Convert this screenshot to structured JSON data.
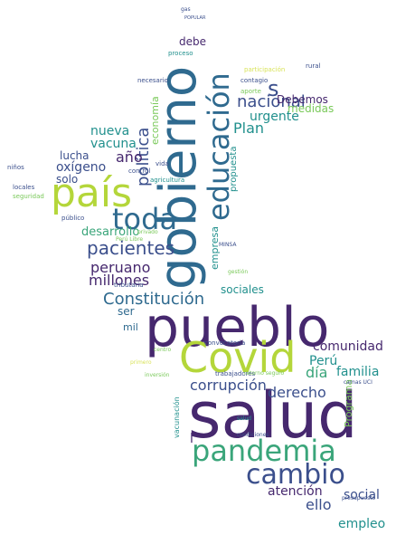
{
  "palette": {
    "dark_purple": "#46286e",
    "navy": "#3b4f8c",
    "blue": "#2f6a8f",
    "teal": "#21908d",
    "green": "#3aa57a",
    "lime": "#b4d63a",
    "light_green": "#7ac95a",
    "yellow_green": "#d9e35a"
  },
  "words": [
    {
      "text": "salud",
      "color": "#46286e"
    },
    {
      "text": "pueblo",
      "color": "#46286e"
    },
    {
      "text": "gobierno",
      "color": "#2f6a8f"
    },
    {
      "text": "Covid",
      "color": "#b4d63a"
    },
    {
      "text": "país",
      "color": "#b4d63a"
    },
    {
      "text": "educación",
      "color": "#2f6a8f"
    },
    {
      "text": "pandemia",
      "color": "#3aa57a"
    },
    {
      "text": "cambio",
      "color": "#3b4f8c"
    },
    {
      "text": "toda",
      "color": "#2f6a8f"
    },
    {
      "text": "Constitución",
      "color": "#2f6a8f"
    },
    {
      "text": "pacientes",
      "color": "#3b4f8c"
    },
    {
      "text": "política",
      "color": "#3b4f8c"
    },
    {
      "text": "nacional",
      "color": "#3b4f8c"
    },
    {
      "text": "oxígeno",
      "color": "#3b4f8c"
    },
    {
      "text": "peruano",
      "color": "#46286e"
    },
    {
      "text": "millones",
      "color": "#46286e"
    },
    {
      "text": "corrupción",
      "color": "#3b4f8c"
    },
    {
      "text": "derecho",
      "color": "#3b4f8c"
    },
    {
      "text": "Perú",
      "color": "#21908d"
    },
    {
      "text": "día",
      "color": "#3aa57a"
    },
    {
      "text": "familia",
      "color": "#21908d"
    },
    {
      "text": "comunidad",
      "color": "#46286e"
    },
    {
      "text": "atención",
      "color": "#46286e"
    },
    {
      "text": "social",
      "color": "#3b4f8c"
    },
    {
      "text": "ello",
      "color": "#3b4f8c"
    },
    {
      "text": "empleo",
      "color": "#21908d"
    },
    {
      "text": "Plan",
      "color": "#21908d"
    },
    {
      "text": "urgente",
      "color": "#21908d"
    },
    {
      "text": "nueva",
      "color": "#21908d"
    },
    {
      "text": "vacuna",
      "color": "#21908d"
    },
    {
      "text": "año",
      "color": "#46286e"
    },
    {
      "text": "lucha",
      "color": "#3b4f8c"
    },
    {
      "text": "solo",
      "color": "#3b4f8c"
    },
    {
      "text": "desarrollo",
      "color": "#3aa57a"
    },
    {
      "text": "medidas",
      "color": "#7ac95a"
    },
    {
      "text": "Debemos",
      "color": "#46286e"
    },
    {
      "text": "debe",
      "color": "#46286e"
    },
    {
      "text": "s",
      "color": "#3b4f8c"
    },
    {
      "text": "sociales",
      "color": "#21908d"
    },
    {
      "text": "economía",
      "color": "#7ac95a"
    },
    {
      "text": "empresa",
      "color": "#21908d"
    },
    {
      "text": "Programa",
      "color": "#7ac95a"
    },
    {
      "text": "ser",
      "color": "#2f6a8f"
    },
    {
      "text": "mil",
      "color": "#2f6a8f"
    },
    {
      "text": "l",
      "color": "#46286e"
    },
    {
      "text": "propuesta",
      "color": "#21908d"
    },
    {
      "text": "vacunación",
      "color": "#21908d"
    },
    {
      "text": "trabajadores",
      "color": "#3b4f8c"
    },
    {
      "text": "convocatoria",
      "color": "#3b4f8c"
    },
    {
      "text": "tributaria",
      "color": "#3b4f8c"
    },
    {
      "text": "público",
      "color": "#3b4f8c"
    },
    {
      "text": "seguridad",
      "color": "#7ac95a"
    },
    {
      "text": "niños",
      "color": "#3b4f8c"
    },
    {
      "text": "locales",
      "color": "#3b4f8c"
    },
    {
      "text": "agricultura",
      "color": "#21908d"
    },
    {
      "text": "vida",
      "color": "#3b4f8c"
    },
    {
      "text": "control",
      "color": "#3b4f8c"
    },
    {
      "text": "proceso",
      "color": "#21908d"
    },
    {
      "text": "contagio",
      "color": "#3b4f8c"
    },
    {
      "text": "necesario",
      "color": "#3b4f8c"
    },
    {
      "text": "aporte",
      "color": "#7ac95a"
    },
    {
      "text": "participación",
      "color": "#d9e35a"
    },
    {
      "text": "rural",
      "color": "#3b4f8c"
    },
    {
      "text": "privado",
      "color": "#7ac95a"
    },
    {
      "text": "Perú Libre",
      "color": "#7ac95a"
    },
    {
      "text": "MINSA",
      "color": "#3b4f8c"
    },
    {
      "text": "gestión",
      "color": "#7ac95a"
    },
    {
      "text": "inversión",
      "color": "#7ac95a"
    },
    {
      "text": "retorno seguro",
      "color": "#7ac95a"
    },
    {
      "text": "camas UCI",
      "color": "#3b4f8c"
    },
    {
      "text": "primero",
      "color": "#d9e35a"
    },
    {
      "text": "condiciones",
      "color": "#3b4f8c"
    },
    {
      "text": "presupuesto",
      "color": "#3b4f8c"
    },
    {
      "text": "gas",
      "color": "#3b4f8c"
    },
    {
      "text": "POPULAR",
      "color": "#3b4f8c"
    },
    {
      "text": "centro",
      "color": "#7ac95a"
    },
    {
      "text": "salud",
      "color": "#21908d"
    }
  ]
}
